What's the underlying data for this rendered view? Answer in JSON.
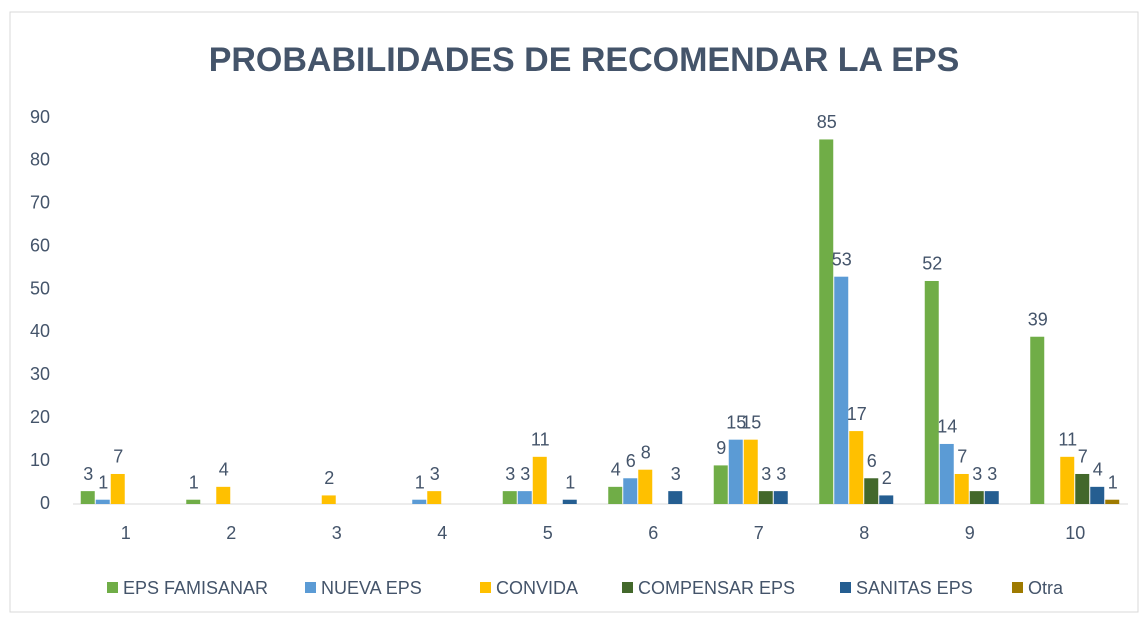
{
  "chart_data": {
    "type": "bar",
    "title": "PROBABILIDADES DE RECOMENDAR LA EPS",
    "categories": [
      "1",
      "2",
      "3",
      "4",
      "5",
      "6",
      "7",
      "8",
      "9",
      "10"
    ],
    "series": [
      {
        "name": "EPS FAMISANAR",
        "color": "#70ad47",
        "values": [
          3,
          1,
          null,
          null,
          3,
          4,
          9,
          85,
          52,
          39
        ]
      },
      {
        "name": "NUEVA EPS",
        "color": "#5b9bd5",
        "values": [
          1,
          null,
          null,
          1,
          3,
          6,
          15,
          53,
          14,
          null
        ]
      },
      {
        "name": "CONVIDA",
        "color": "#ffc000",
        "values": [
          7,
          4,
          2,
          3,
          11,
          8,
          15,
          17,
          7,
          11
        ]
      },
      {
        "name": "COMPENSAR EPS",
        "color": "#43682b",
        "values": [
          null,
          null,
          null,
          null,
          null,
          null,
          3,
          6,
          3,
          7
        ]
      },
      {
        "name": "SANITAS EPS",
        "color": "#255e91",
        "values": [
          null,
          null,
          null,
          null,
          1,
          3,
          3,
          2,
          3,
          4
        ]
      },
      {
        "name": "Otra",
        "color": "#9e7a00",
        "values": [
          null,
          null,
          null,
          null,
          null,
          null,
          null,
          null,
          null,
          1
        ]
      }
    ],
    "ylim": [
      0,
      90
    ],
    "yticks": [
      0,
      10,
      20,
      30,
      40,
      50,
      60,
      70,
      80,
      90
    ],
    "grid": false,
    "legend": "bottom"
  }
}
